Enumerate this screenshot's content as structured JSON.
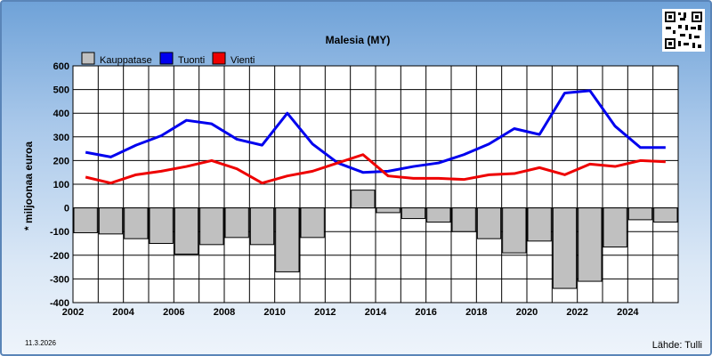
{
  "chart_data": {
    "type": "bar",
    "title": "Malesia (MY)",
    "ylabel": "* miljoonaa euroa",
    "xlabel": "",
    "ylim": [
      -400,
      600
    ],
    "yticks": [
      600,
      500,
      400,
      300,
      200,
      100,
      0,
      -100,
      -200,
      -300,
      -400
    ],
    "grid": true,
    "legend_placement": "top-left",
    "x": [
      2002,
      2003,
      2004,
      2005,
      2006,
      2007,
      2008,
      2009,
      2010,
      2011,
      2012,
      2013,
      2014,
      2015,
      2016,
      2017,
      2018,
      2019,
      2020,
      2021,
      2022,
      2023,
      2024,
      2025
    ],
    "xticks": [
      "2002",
      "2004",
      "2006",
      "2008",
      "2010",
      "2012",
      "2014",
      "2016",
      "2018",
      "2020",
      "2022",
      "2024"
    ],
    "series": [
      {
        "name": "Kauppatase",
        "type": "bar",
        "color": "#c0c0c0",
        "values": [
          -105,
          -110,
          -130,
          -150,
          -195,
          -155,
          -125,
          -155,
          -270,
          -125,
          0,
          75,
          -20,
          -45,
          -60,
          -100,
          -130,
          -190,
          -140,
          -340,
          -310,
          -165,
          -50,
          -60
        ]
      },
      {
        "name": "Tuonti",
        "type": "line",
        "color": "#0000ee",
        "values": [
          235,
          215,
          265,
          305,
          370,
          355,
          290,
          265,
          400,
          270,
          190,
          150,
          155,
          175,
          190,
          225,
          270,
          335,
          310,
          485,
          495,
          345,
          255,
          255
        ]
      },
      {
        "name": "Vienti",
        "type": "line",
        "color": "#ee0000",
        "values": [
          130,
          105,
          140,
          155,
          175,
          200,
          165,
          105,
          135,
          155,
          190,
          225,
          135,
          125,
          125,
          120,
          140,
          145,
          170,
          140,
          185,
          175,
          200,
          195
        ]
      }
    ]
  },
  "footer": {
    "date": "11.3.2026",
    "source": "Lähde: Tulli"
  }
}
